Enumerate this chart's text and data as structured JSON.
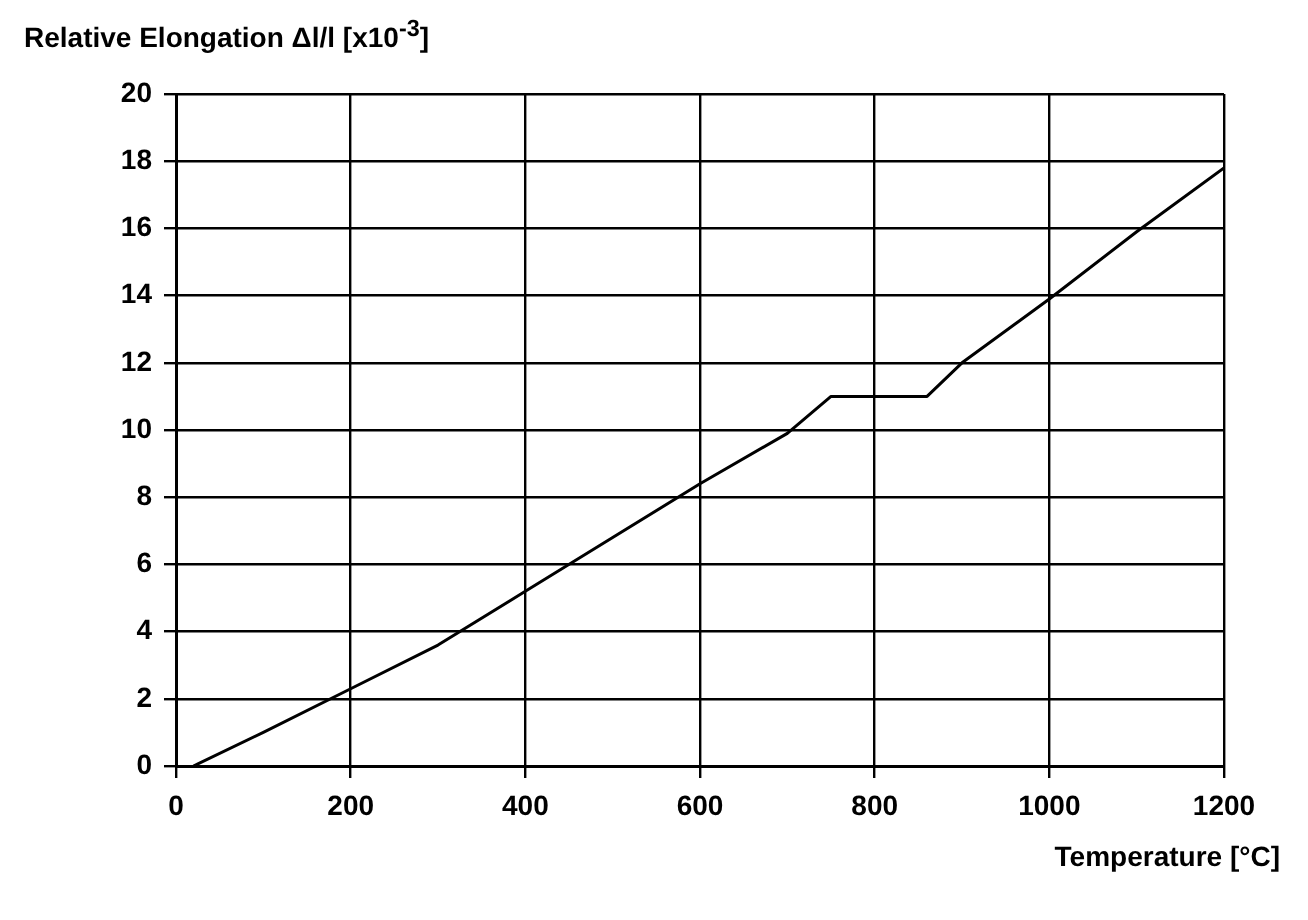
{
  "chart_data": {
    "type": "line",
    "ylabel": "Relative Elongation Δl/l [x10$^{-3}$]",
    "xlabel": "Temperature [°C]",
    "series": [
      {
        "color": "#000000",
        "x": [
          20,
          100,
          200,
          300,
          400,
          500,
          600,
          700,
          750,
          860,
          900,
          1000,
          1100,
          1200
        ],
        "values": [
          0,
          1.0,
          2.3,
          3.6,
          5.2,
          6.8,
          8.4,
          9.9,
          11,
          11,
          12,
          13.9,
          15.9,
          17.8
        ]
      }
    ],
    "xlim": [
      0,
      1200
    ],
    "xticks": [
      0,
      200,
      400,
      600,
      800,
      1000,
      1200
    ],
    "ylim": [
      0,
      20
    ],
    "yticks": [
      0,
      2,
      4,
      6,
      8,
      10,
      12,
      14,
      16,
      18,
      20
    ],
    "grid": true,
    "legend": false,
    "marker": "none",
    "line_style": "solid"
  }
}
